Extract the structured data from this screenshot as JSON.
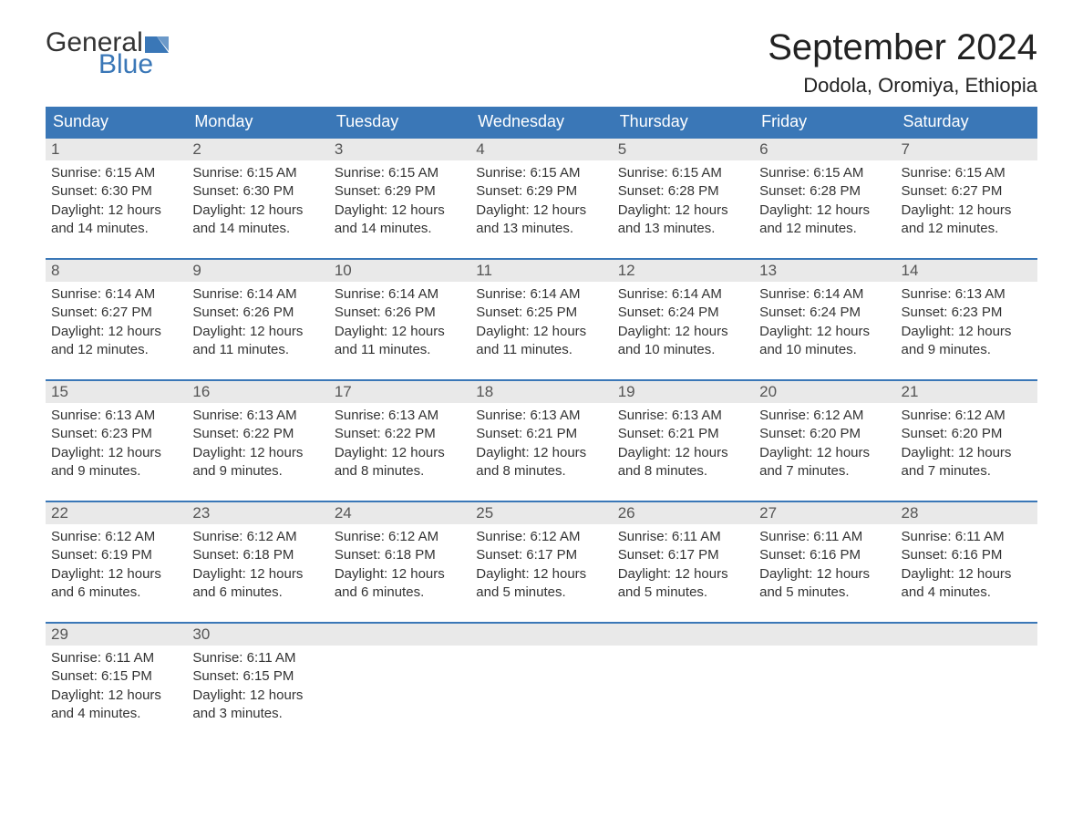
{
  "logo": {
    "general": "General",
    "blue": "Blue"
  },
  "title": "September 2024",
  "location": "Dodola, Oromiya, Ethiopia",
  "colors": {
    "header_bg": "#3a77b7",
    "daynum_bg": "#e9e9e9",
    "border": "#3a77b7",
    "text": "#333333",
    "logo_blue": "#3a77b7",
    "background": "#ffffff"
  },
  "day_headers": [
    "Sunday",
    "Monday",
    "Tuesday",
    "Wednesday",
    "Thursday",
    "Friday",
    "Saturday"
  ],
  "weeks": [
    [
      {
        "n": "1",
        "sunrise": "6:15 AM",
        "sunset": "6:30 PM",
        "dl1": "Daylight: 12 hours",
        "dl2": "and 14 minutes."
      },
      {
        "n": "2",
        "sunrise": "6:15 AM",
        "sunset": "6:30 PM",
        "dl1": "Daylight: 12 hours",
        "dl2": "and 14 minutes."
      },
      {
        "n": "3",
        "sunrise": "6:15 AM",
        "sunset": "6:29 PM",
        "dl1": "Daylight: 12 hours",
        "dl2": "and 14 minutes."
      },
      {
        "n": "4",
        "sunrise": "6:15 AM",
        "sunset": "6:29 PM",
        "dl1": "Daylight: 12 hours",
        "dl2": "and 13 minutes."
      },
      {
        "n": "5",
        "sunrise": "6:15 AM",
        "sunset": "6:28 PM",
        "dl1": "Daylight: 12 hours",
        "dl2": "and 13 minutes."
      },
      {
        "n": "6",
        "sunrise": "6:15 AM",
        "sunset": "6:28 PM",
        "dl1": "Daylight: 12 hours",
        "dl2": "and 12 minutes."
      },
      {
        "n": "7",
        "sunrise": "6:15 AM",
        "sunset": "6:27 PM",
        "dl1": "Daylight: 12 hours",
        "dl2": "and 12 minutes."
      }
    ],
    [
      {
        "n": "8",
        "sunrise": "6:14 AM",
        "sunset": "6:27 PM",
        "dl1": "Daylight: 12 hours",
        "dl2": "and 12 minutes."
      },
      {
        "n": "9",
        "sunrise": "6:14 AM",
        "sunset": "6:26 PM",
        "dl1": "Daylight: 12 hours",
        "dl2": "and 11 minutes."
      },
      {
        "n": "10",
        "sunrise": "6:14 AM",
        "sunset": "6:26 PM",
        "dl1": "Daylight: 12 hours",
        "dl2": "and 11 minutes."
      },
      {
        "n": "11",
        "sunrise": "6:14 AM",
        "sunset": "6:25 PM",
        "dl1": "Daylight: 12 hours",
        "dl2": "and 11 minutes."
      },
      {
        "n": "12",
        "sunrise": "6:14 AM",
        "sunset": "6:24 PM",
        "dl1": "Daylight: 12 hours",
        "dl2": "and 10 minutes."
      },
      {
        "n": "13",
        "sunrise": "6:14 AM",
        "sunset": "6:24 PM",
        "dl1": "Daylight: 12 hours",
        "dl2": "and 10 minutes."
      },
      {
        "n": "14",
        "sunrise": "6:13 AM",
        "sunset": "6:23 PM",
        "dl1": "Daylight: 12 hours",
        "dl2": "and 9 minutes."
      }
    ],
    [
      {
        "n": "15",
        "sunrise": "6:13 AM",
        "sunset": "6:23 PM",
        "dl1": "Daylight: 12 hours",
        "dl2": "and 9 minutes."
      },
      {
        "n": "16",
        "sunrise": "6:13 AM",
        "sunset": "6:22 PM",
        "dl1": "Daylight: 12 hours",
        "dl2": "and 9 minutes."
      },
      {
        "n": "17",
        "sunrise": "6:13 AM",
        "sunset": "6:22 PM",
        "dl1": "Daylight: 12 hours",
        "dl2": "and 8 minutes."
      },
      {
        "n": "18",
        "sunrise": "6:13 AM",
        "sunset": "6:21 PM",
        "dl1": "Daylight: 12 hours",
        "dl2": "and 8 minutes."
      },
      {
        "n": "19",
        "sunrise": "6:13 AM",
        "sunset": "6:21 PM",
        "dl1": "Daylight: 12 hours",
        "dl2": "and 8 minutes."
      },
      {
        "n": "20",
        "sunrise": "6:12 AM",
        "sunset": "6:20 PM",
        "dl1": "Daylight: 12 hours",
        "dl2": "and 7 minutes."
      },
      {
        "n": "21",
        "sunrise": "6:12 AM",
        "sunset": "6:20 PM",
        "dl1": "Daylight: 12 hours",
        "dl2": "and 7 minutes."
      }
    ],
    [
      {
        "n": "22",
        "sunrise": "6:12 AM",
        "sunset": "6:19 PM",
        "dl1": "Daylight: 12 hours",
        "dl2": "and 6 minutes."
      },
      {
        "n": "23",
        "sunrise": "6:12 AM",
        "sunset": "6:18 PM",
        "dl1": "Daylight: 12 hours",
        "dl2": "and 6 minutes."
      },
      {
        "n": "24",
        "sunrise": "6:12 AM",
        "sunset": "6:18 PM",
        "dl1": "Daylight: 12 hours",
        "dl2": "and 6 minutes."
      },
      {
        "n": "25",
        "sunrise": "6:12 AM",
        "sunset": "6:17 PM",
        "dl1": "Daylight: 12 hours",
        "dl2": "and 5 minutes."
      },
      {
        "n": "26",
        "sunrise": "6:11 AM",
        "sunset": "6:17 PM",
        "dl1": "Daylight: 12 hours",
        "dl2": "and 5 minutes."
      },
      {
        "n": "27",
        "sunrise": "6:11 AM",
        "sunset": "6:16 PM",
        "dl1": "Daylight: 12 hours",
        "dl2": "and 5 minutes."
      },
      {
        "n": "28",
        "sunrise": "6:11 AM",
        "sunset": "6:16 PM",
        "dl1": "Daylight: 12 hours",
        "dl2": "and 4 minutes."
      }
    ],
    [
      {
        "n": "29",
        "sunrise": "6:11 AM",
        "sunset": "6:15 PM",
        "dl1": "Daylight: 12 hours",
        "dl2": "and 4 minutes."
      },
      {
        "n": "30",
        "sunrise": "6:11 AM",
        "sunset": "6:15 PM",
        "dl1": "Daylight: 12 hours",
        "dl2": "and 3 minutes."
      },
      null,
      null,
      null,
      null,
      null
    ]
  ],
  "labels": {
    "sunrise_prefix": "Sunrise: ",
    "sunset_prefix": "Sunset: "
  }
}
